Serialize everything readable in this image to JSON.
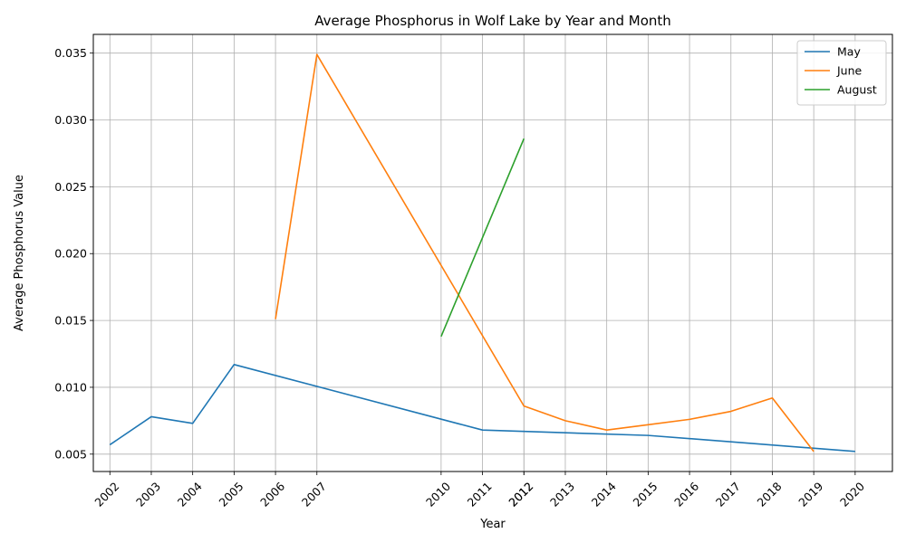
{
  "chart_data": {
    "type": "line",
    "title": "Average Phosphorus in Wolf Lake by Year and Month",
    "xlabel": "Year",
    "ylabel": "Average Phosphorus Value",
    "x_ticks": [
      "2002",
      "2003",
      "2004",
      "2005",
      "2006",
      "2007",
      "2010",
      "2011",
      "2012",
      "2012",
      "2013",
      "2014",
      "2015",
      "2016",
      "2017",
      "2018",
      "2019",
      "2020"
    ],
    "xlim": [
      2001.6,
      2020.9
    ],
    "ylim": [
      0.0037,
      0.0364
    ],
    "y_ticks": [
      0.005,
      0.01,
      0.015,
      0.02,
      0.025,
      0.03,
      0.035
    ],
    "y_tick_labels": [
      "0.005",
      "0.010",
      "0.015",
      "0.020",
      "0.025",
      "0.030",
      "0.035"
    ],
    "grid": true,
    "legend_position": "top-right",
    "series": [
      {
        "name": "May",
        "color": "#1f77b4",
        "points": [
          [
            2002,
            0.0057
          ],
          [
            2003,
            0.0078
          ],
          [
            2004,
            0.0073
          ],
          [
            2005,
            0.0117
          ],
          [
            2011,
            0.0068
          ],
          [
            2015,
            0.0064
          ],
          [
            2020,
            0.0052
          ]
        ]
      },
      {
        "name": "June",
        "color": "#ff7f0e",
        "points": [
          [
            2006,
            0.0151
          ],
          [
            2007,
            0.0349
          ],
          [
            2012,
            0.0086
          ],
          [
            2013,
            0.0075
          ],
          [
            2014,
            0.0068
          ],
          [
            2015,
            0.0072
          ],
          [
            2016,
            0.0076
          ],
          [
            2017,
            0.0082
          ],
          [
            2018,
            0.0092
          ],
          [
            2019,
            0.0052
          ]
        ]
      },
      {
        "name": "August",
        "color": "#2ca02c",
        "points": [
          [
            2010,
            0.0138
          ],
          [
            2012,
            0.0286
          ]
        ]
      }
    ]
  }
}
